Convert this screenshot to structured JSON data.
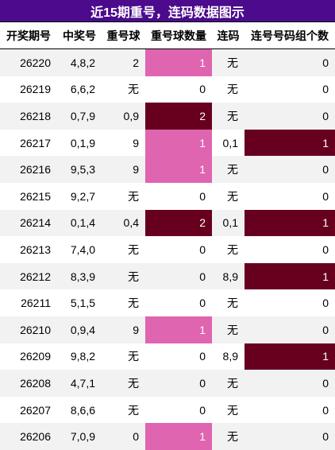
{
  "title": "近15期重号，连码数据图示",
  "table": {
    "header": [
      "开奖期号",
      "中奖号",
      "重号球",
      "重号球数量",
      "连码",
      "连号号码组个数"
    ],
    "rows": [
      [
        26220,
        "4,8,2",
        "2",
        1,
        "无",
        0
      ],
      [
        26219,
        "6,6,2",
        "无",
        0,
        "无",
        0
      ],
      [
        26218,
        "0,7,9",
        "0,9",
        2,
        "无",
        0
      ],
      [
        26217,
        "0,1,9",
        "9",
        1,
        "0,1",
        1
      ],
      [
        26216,
        "9,5,3",
        "9",
        1,
        "无",
        0
      ],
      [
        26215,
        "9,2,7",
        "无",
        0,
        "无",
        0
      ],
      [
        26214,
        "0,1,4",
        "0,4",
        2,
        "0,1",
        1
      ],
      [
        26213,
        "7,4,0",
        "无",
        0,
        "无",
        0
      ],
      [
        26212,
        "8,3,9",
        "无",
        0,
        "8,9",
        1
      ],
      [
        26211,
        "5,1,5",
        "无",
        0,
        "无",
        0
      ],
      [
        26210,
        "0,9,4",
        "9",
        1,
        "无",
        0
      ],
      [
        26209,
        "9,8,2",
        "无",
        0,
        "8,9",
        1
      ],
      [
        26208,
        "4,7,1",
        "无",
        0,
        "无",
        0
      ],
      [
        26207,
        "8,6,6",
        "无",
        0,
        "无",
        0
      ],
      [
        26206,
        "7,0,9",
        "0",
        1,
        "无",
        0
      ]
    ]
  },
  "repeat_count_colors": [
    "#ffffff",
    "#df65b0",
    "#67001f"
  ],
  "consecutive_count_colors": [
    "#ffffff",
    "#67001f"
  ]
}
